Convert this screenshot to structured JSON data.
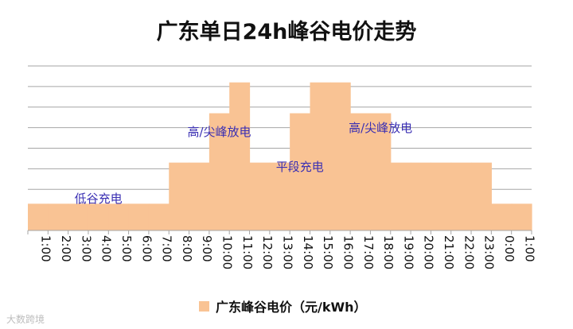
{
  "chart_data": {
    "type": "area",
    "title": "广东单日24h峰谷电价走势",
    "x": [
      "1:00",
      "2:00",
      "3:00",
      "4:00",
      "5:00",
      "6:00",
      "7:00",
      "8:00",
      "9:00",
      "10:00",
      "11:00",
      "12:00",
      "13:00",
      "14:00",
      "15:00",
      "16:00",
      "17:00",
      "18:00",
      "19:00",
      "20:00",
      "21:00",
      "22:00",
      "23:00",
      "0:00",
      "1:00"
    ],
    "series": [
      {
        "name": "广东峰谷电价（元/kWh）",
        "values": [
          1.3,
          1.3,
          1.3,
          1.3,
          1.3,
          1.3,
          1.3,
          3.3,
          3.3,
          5.7,
          7.2,
          3.3,
          3.3,
          5.7,
          7.2,
          7.2,
          5.7,
          5.7,
          3.3,
          3.3,
          3.3,
          3.3,
          3.3,
          1.3,
          1.3
        ],
        "color": "#f9c394"
      }
    ],
    "ylim": [
      0,
      8
    ],
    "grid": true,
    "legend": "bottom",
    "annotations": [
      {
        "text": "低谷充电",
        "x": "4:00",
        "y": 1.35
      },
      {
        "text": "高/尖峰放电",
        "x": "10:00",
        "y": 4.6
      },
      {
        "text": "平段充电",
        "x": "14:00",
        "y": 2.9
      },
      {
        "text": "高/尖峰放电",
        "x": "18:00",
        "y": 4.8
      }
    ]
  },
  "watermark": "大数跨境"
}
